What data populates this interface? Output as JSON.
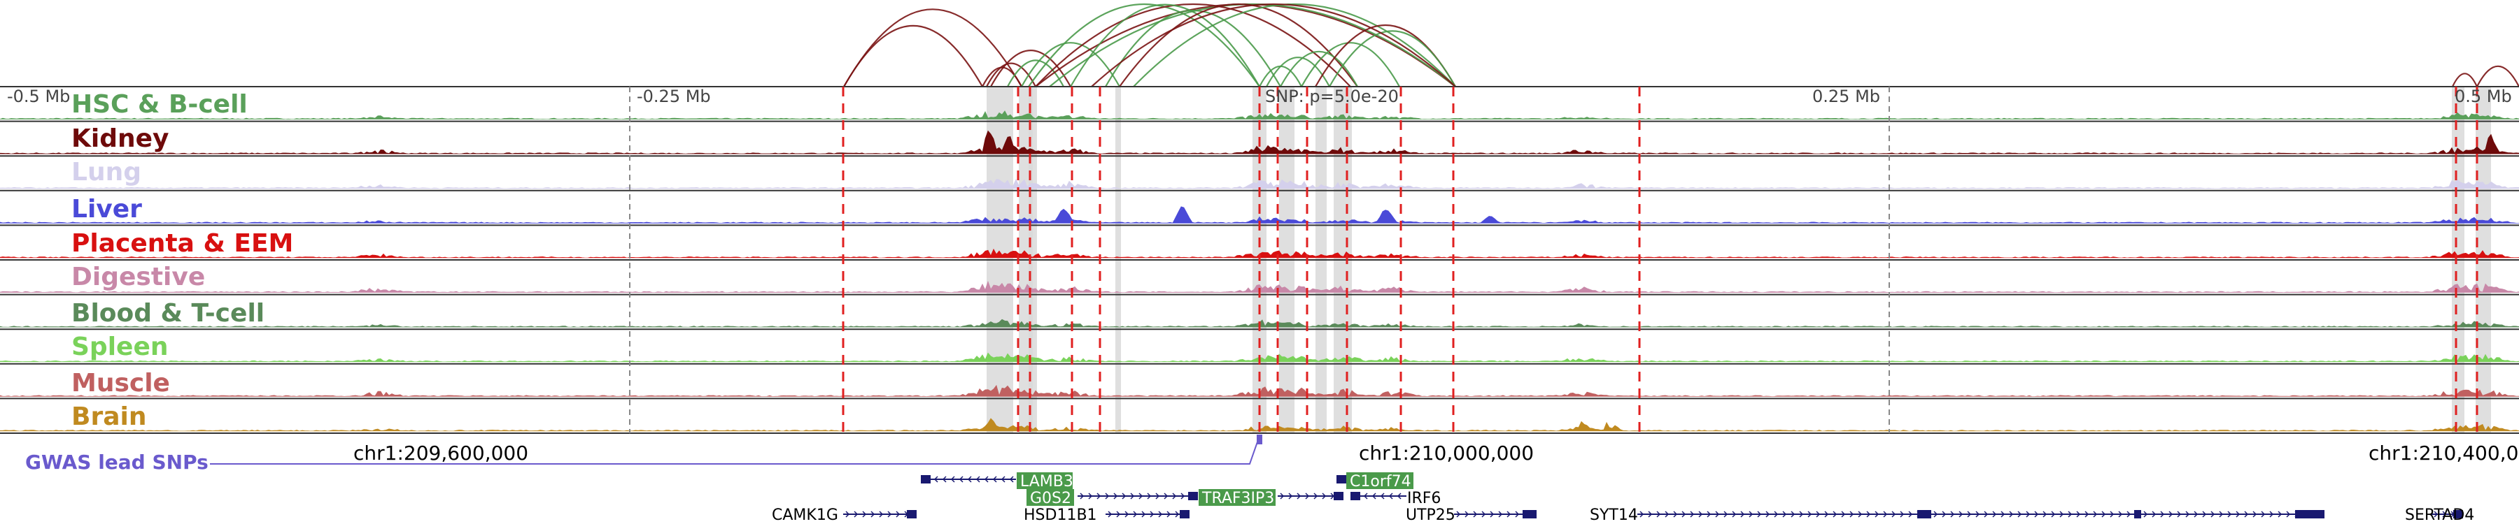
{
  "ruler": {
    "ticks": [
      {
        "label": "-0.5 Mb",
        "offset_mb": -0.5
      },
      {
        "label": "-0.25 Mb",
        "offset_mb": -0.25
      },
      {
        "label": "0.25 Mb",
        "offset_mb": 0.25
      },
      {
        "label": "0.5 Mb",
        "offset_mb": 0.5
      }
    ],
    "snp_label": "SNP: p=5.0e-20"
  },
  "tracks": [
    {
      "name": "HSC & B-cell",
      "color": "#5aa05a"
    },
    {
      "name": "Kidney",
      "color": "#6e0a0a"
    },
    {
      "name": "Lung",
      "color": "#d4d0ec"
    },
    {
      "name": "Liver",
      "color": "#4a4ad8"
    },
    {
      "name": "Placenta & EEM",
      "color": "#d81010"
    },
    {
      "name": "Digestive",
      "color": "#c888a8"
    },
    {
      "name": "Blood & T-cell",
      "color": "#5a8a5a"
    },
    {
      "name": "Spleen",
      "color": "#7ad25a"
    },
    {
      "name": "Muscle",
      "color": "#c06060"
    },
    {
      "name": "Brain",
      "color": "#c08a20"
    }
  ],
  "coordinates": [
    "chr1:209,600,000",
    "chr1:210,000,000",
    "chr1:210,400,0"
  ],
  "gwas": {
    "label": "GWAS lead SNPs",
    "color": "#6a5acd"
  },
  "genes": [
    {
      "label": "LAMB3",
      "boxed": true
    },
    {
      "label": "G0S2",
      "boxed": true
    },
    {
      "label": "TRAF3IP3",
      "boxed": true
    },
    {
      "label": "C1orf74",
      "boxed": true
    },
    {
      "label": "IRF6",
      "boxed": false
    },
    {
      "label": "CAMK1G",
      "boxed": false
    },
    {
      "label": "HSD11B1",
      "boxed": false
    },
    {
      "label": "UTP25",
      "boxed": false
    },
    {
      "label": "SYT14",
      "boxed": false
    },
    {
      "label": "SERTAD4",
      "boxed": false
    }
  ],
  "colors": {
    "loop_green": "#4a9a4a",
    "loop_red": "#7a1414",
    "marker_red": "#e02020",
    "highlight_gray": "#d9d9d9",
    "gene_box": "#4a9a4a",
    "gene_body": "#191970"
  }
}
